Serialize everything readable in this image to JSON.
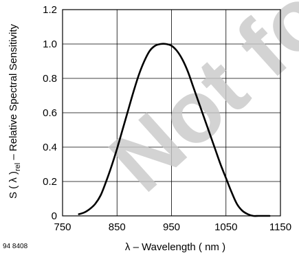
{
  "figure_id": "94 8408",
  "watermark": "Not fo",
  "chart_data": {
    "type": "line",
    "title": "",
    "xlabel": "λ – Wavelength ( nm )",
    "ylabel_main": "S ( λ )",
    "ylabel_sub": "rel",
    "ylabel_rest": " – Relative Spectral Sensitivity",
    "xlim": [
      750,
      1150
    ],
    "ylim": [
      0,
      1.2
    ],
    "xticks": [
      "750",
      "850",
      "950",
      "1050",
      "1150"
    ],
    "yticks": [
      "0",
      "0.2",
      "0.4",
      "0.6",
      "0.8",
      "1.0",
      "1.2"
    ],
    "grid": true,
    "series": [
      {
        "color": "#000000",
        "x": [
          780,
          790,
          800,
          810,
          820,
          830,
          840,
          850,
          860,
          870,
          880,
          890,
          900,
          910,
          920,
          930,
          940,
          950,
          960,
          970,
          980,
          990,
          1000,
          1010,
          1020,
          1030,
          1040,
          1050,
          1060,
          1070,
          1080,
          1090,
          1100,
          1110,
          1120,
          1130
        ],
        "y": [
          0.01,
          0.02,
          0.04,
          0.07,
          0.12,
          0.2,
          0.29,
          0.39,
          0.5,
          0.61,
          0.72,
          0.82,
          0.9,
          0.96,
          0.99,
          1.0,
          1.0,
          0.99,
          0.96,
          0.91,
          0.84,
          0.75,
          0.66,
          0.57,
          0.48,
          0.39,
          0.3,
          0.22,
          0.14,
          0.07,
          0.03,
          0.01,
          0.0,
          0.0,
          0.0,
          0.0
        ]
      }
    ]
  }
}
